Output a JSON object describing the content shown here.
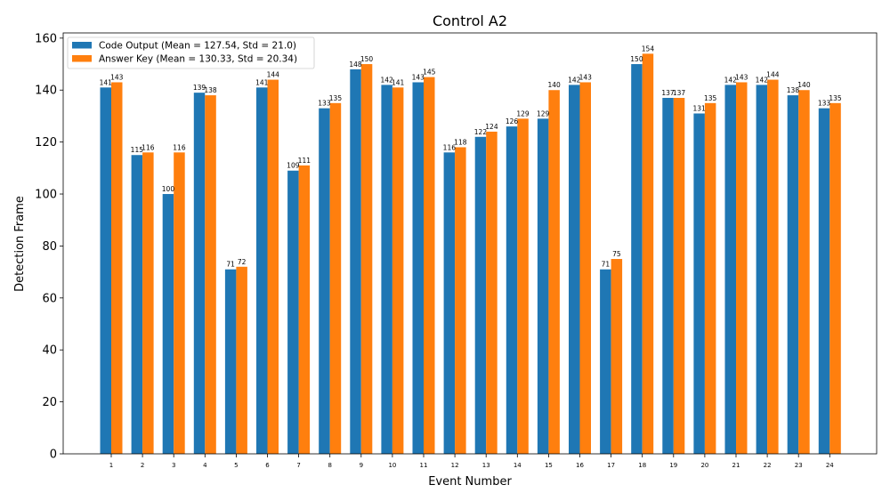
{
  "chart_data": {
    "type": "bar",
    "title": "Control A2",
    "xlabel": "Event Number",
    "ylabel": "Detection Frame",
    "ylim": [
      0,
      162
    ],
    "yticks": [
      0,
      20,
      40,
      60,
      80,
      100,
      120,
      140,
      160
    ],
    "grid": false,
    "legend_position": "top-left",
    "categories": [
      "1",
      "2",
      "3",
      "4",
      "5",
      "6",
      "7",
      "8",
      "9",
      "10",
      "11",
      "12",
      "13",
      "14",
      "15",
      "16",
      "17",
      "18",
      "19",
      "20",
      "21",
      "22",
      "23",
      "24"
    ],
    "series": [
      {
        "name": "Code Output (Mean = 127.54, Std = 21.0)",
        "color": "#1f77b4",
        "values": [
          141,
          115,
          100,
          139,
          71,
          141,
          109,
          133,
          148,
          142,
          143,
          116,
          122,
          126,
          129,
          142,
          71,
          150,
          137,
          131,
          142,
          142,
          138,
          133
        ]
      },
      {
        "name": "Answer Key (Mean = 130.33, Std = 20.34)",
        "color": "#ff7f0e",
        "values": [
          143,
          116,
          116,
          138,
          72,
          144,
          111,
          135,
          150,
          141,
          145,
          118,
          124,
          129,
          140,
          143,
          75,
          154,
          137,
          135,
          143,
          144,
          140,
          135
        ]
      }
    ]
  }
}
